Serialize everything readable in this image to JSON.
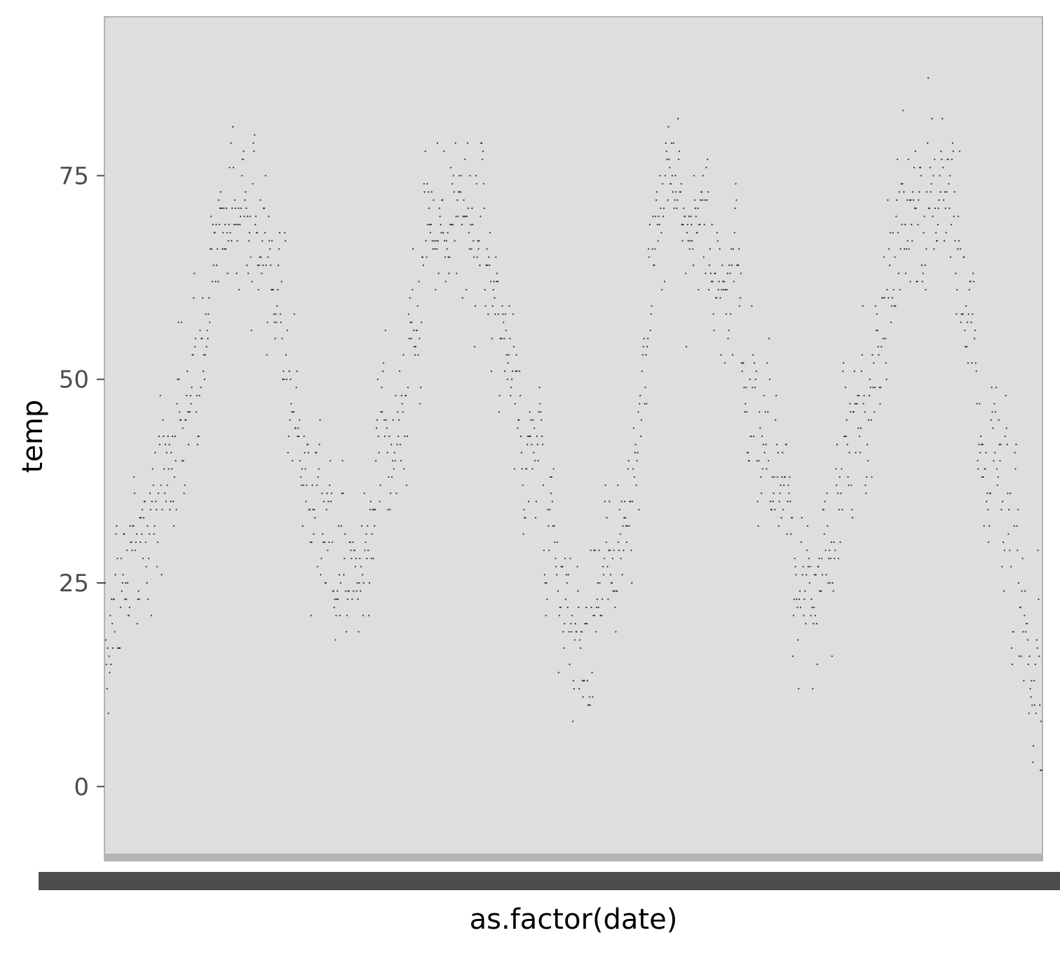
{
  "chart_data": {
    "type": "scatter",
    "xlabel": "as.factor(date)",
    "ylabel": "temp",
    "ylim": [
      -8.5,
      94.5
    ],
    "y_ticks": [
      0,
      25,
      50,
      75
    ],
    "y_tick_labels": [
      "0",
      "25",
      "50",
      "75"
    ],
    "x_tick_labels_illegible": true,
    "grid": false,
    "legend": "none",
    "years_shown": 4,
    "seasonal_anchors": [
      [
        0.0,
        20
      ],
      [
        0.04,
        30
      ],
      [
        0.09,
        46
      ],
      [
        0.13,
        72
      ],
      [
        0.18,
        64
      ],
      [
        0.215,
        38
      ],
      [
        0.26,
        26
      ],
      [
        0.31,
        44
      ],
      [
        0.355,
        72
      ],
      [
        0.4,
        68
      ],
      [
        0.455,
        42
      ],
      [
        0.5,
        16
      ],
      [
        0.545,
        32
      ],
      [
        0.61,
        74
      ],
      [
        0.655,
        66
      ],
      [
        0.71,
        40
      ],
      [
        0.75,
        22
      ],
      [
        0.8,
        44
      ],
      [
        0.86,
        70
      ],
      [
        0.9,
        70
      ],
      [
        0.95,
        40
      ],
      [
        1.0,
        12
      ]
    ],
    "spread_sd": 7.5,
    "n_points": 1461,
    "series": [
      {
        "name": "temp",
        "marker": "point",
        "color": "#333333"
      }
    ]
  },
  "colors": {
    "panel_background": "#dedede",
    "panel_border": "#b3b3b3",
    "point": "#333333",
    "x_tick_band": "#4d4d4d",
    "x_axis_line": "#b3b3b3"
  }
}
